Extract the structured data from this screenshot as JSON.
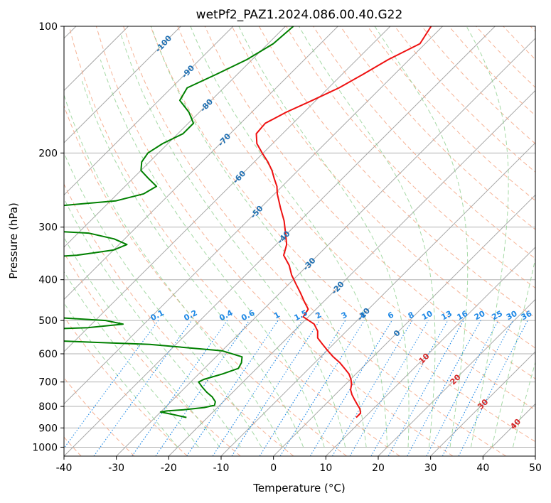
{
  "chart_data": {
    "type": "skew-t",
    "title": "wetPf2_PAZ1.2024.086.00.40.G22",
    "xlabel": "Temperature (°C)",
    "ylabel": "Pressure (hPa)",
    "xlim": [
      -40,
      50
    ],
    "ylim": [
      1050,
      100
    ],
    "y_scale": "log",
    "grid": true,
    "x_ticks": [
      "-40",
      "-30",
      "-20",
      "-10",
      "0",
      "10",
      "20",
      "30",
      "40",
      "50"
    ],
    "y_ticks": [
      "100",
      "200",
      "300",
      "400",
      "500",
      "600",
      "700",
      "800",
      "900",
      "1000"
    ],
    "colors": {
      "temperature": "#ee1111",
      "dewpoint": "#008000",
      "isotherm": "#a8a8a8",
      "dry_adiabat": "#f4a582",
      "moist_adiabat": "#8fcf8f",
      "mixing_ratio": "#1e88e5",
      "isotherm_label": "#1f6fb2",
      "moist_label": "#d62728"
    },
    "isotherm_labels": [
      {
        "t": -100,
        "p": 110,
        "text": "-100"
      },
      {
        "t": -90,
        "p": 128,
        "text": "-90"
      },
      {
        "t": -80,
        "p": 154,
        "text": "-80"
      },
      {
        "t": -70,
        "p": 186,
        "text": "-70"
      },
      {
        "t": -60,
        "p": 228,
        "text": "-60"
      },
      {
        "t": -50,
        "p": 276,
        "text": "-50"
      },
      {
        "t": -40,
        "p": 317,
        "text": "-40"
      },
      {
        "t": -30,
        "p": 367,
        "text": "-30"
      },
      {
        "t": -20,
        "p": 418,
        "text": "-20"
      },
      {
        "t": -10,
        "p": 483,
        "text": "-10"
      },
      {
        "t": 0,
        "p": 536,
        "text": "0"
      }
    ],
    "moist_adiabat_labels": [
      {
        "t": 10,
        "p": 615,
        "text": "10"
      },
      {
        "t": 20,
        "p": 690,
        "text": "20"
      },
      {
        "t": 30,
        "p": 790,
        "text": "30"
      },
      {
        "t": 40,
        "p": 880,
        "text": "40"
      }
    ],
    "mixing_ratio_labels": [
      "0.1",
      "0.2",
      "0.4",
      "0.6",
      "1",
      "1.5",
      "2",
      "3",
      "4",
      "6",
      "8",
      "10",
      "13",
      "16",
      "20",
      "25",
      "30",
      "36"
    ],
    "temperature_profile": [
      [
        100,
        -52.2
      ],
      [
        110,
        -51.0
      ],
      [
        120,
        -54.0
      ],
      [
        130,
        -56.0
      ],
      [
        140,
        -58.0
      ],
      [
        150,
        -60.7
      ],
      [
        160,
        -63.4
      ],
      [
        170,
        -65.3
      ],
      [
        180,
        -65.0
      ],
      [
        190,
        -63.0
      ],
      [
        200,
        -60.2
      ],
      [
        210,
        -57.4
      ],
      [
        220,
        -55.0
      ],
      [
        230,
        -53.0
      ],
      [
        240,
        -51.0
      ],
      [
        250,
        -49.5
      ],
      [
        270,
        -46.2
      ],
      [
        290,
        -43.0
      ],
      [
        310,
        -40.4
      ],
      [
        330,
        -38.0
      ],
      [
        350,
        -36.5
      ],
      [
        370,
        -33.5
      ],
      [
        390,
        -31.2
      ],
      [
        410,
        -28.6
      ],
      [
        430,
        -26.1
      ],
      [
        450,
        -23.8
      ],
      [
        470,
        -21.5
      ],
      [
        490,
        -21.0
      ],
      [
        510,
        -17.5
      ],
      [
        530,
        -15.5
      ],
      [
        550,
        -14.2
      ],
      [
        570,
        -12.0
      ],
      [
        590,
        -9.8
      ],
      [
        610,
        -7.6
      ],
      [
        630,
        -5.2
      ],
      [
        650,
        -3.2
      ],
      [
        670,
        -1.3
      ],
      [
        690,
        0.1
      ],
      [
        710,
        1.2
      ],
      [
        730,
        2.0
      ],
      [
        750,
        3.2
      ],
      [
        770,
        4.6
      ],
      [
        790,
        6.0
      ],
      [
        810,
        7.4
      ],
      [
        830,
        8.4
      ],
      [
        850,
        8.4
      ]
    ],
    "dewpoint_profile": [
      [
        100,
        -78.5
      ],
      [
        110,
        -79.0
      ],
      [
        120,
        -81.0
      ],
      [
        130,
        -84.0
      ],
      [
        140,
        -87.0
      ],
      [
        150,
        -86.0
      ],
      [
        160,
        -82.0
      ],
      [
        170,
        -79.0
      ],
      [
        180,
        -79.0
      ],
      [
        190,
        -81.0
      ],
      [
        200,
        -82.0
      ],
      [
        210,
        -81.5
      ],
      [
        220,
        -80.0
      ],
      [
        230,
        -77.0
      ],
      [
        240,
        -74.0
      ],
      [
        250,
        -75.0
      ],
      [
        260,
        -79.0
      ],
      [
        270,
        -93.0
      ],
      [
        280,
        -99.0
      ],
      [
        290,
        -100.0
      ],
      [
        300,
        -100.0
      ],
      [
        310,
        -78.0
      ],
      [
        320,
        -72.0
      ],
      [
        330,
        -68.5
      ],
      [
        340,
        -70.0
      ],
      [
        350,
        -76.0
      ],
      [
        355,
        -84.0
      ],
      [
        370,
        -86.0
      ],
      [
        380,
        -87.0
      ],
      [
        395,
        -93.0
      ],
      [
        420,
        -100.0
      ],
      [
        480,
        -100.0
      ],
      [
        485,
        -77.0
      ],
      [
        500,
        -58.0
      ],
      [
        510,
        -54.0
      ],
      [
        520,
        -60.0
      ],
      [
        530,
        -79.0
      ],
      [
        535,
        -100.0
      ],
      [
        550,
        -100.0
      ],
      [
        555,
        -70.0
      ],
      [
        570,
        -45.0
      ],
      [
        590,
        -30.0
      ],
      [
        610,
        -25.0
      ],
      [
        630,
        -24.0
      ],
      [
        650,
        -23.5
      ],
      [
        670,
        -25.5
      ],
      [
        690,
        -28.0
      ],
      [
        700,
        -28.5
      ],
      [
        720,
        -26.8
      ],
      [
        740,
        -25.0
      ],
      [
        760,
        -23.0
      ],
      [
        780,
        -21.5
      ],
      [
        795,
        -21.0
      ],
      [
        805,
        -22.5
      ],
      [
        815,
        -26.0
      ],
      [
        820,
        -29.0
      ],
      [
        825,
        -30.0
      ],
      [
        835,
        -27.5
      ],
      [
        850,
        -24.0
      ]
    ]
  }
}
